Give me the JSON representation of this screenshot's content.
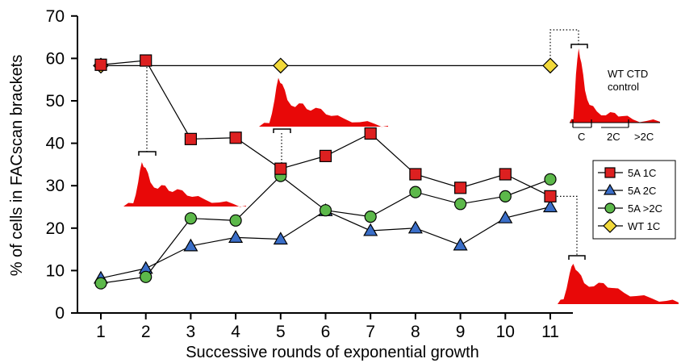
{
  "chart_data": {
    "type": "line",
    "xlabel": "Successive rounds of exponential growth",
    "ylabel": "% of cells in FACscan brackets",
    "x": [
      1,
      2,
      3,
      4,
      5,
      6,
      7,
      8,
      9,
      10,
      11
    ],
    "x_tick_labels": [
      "1",
      "2",
      "3",
      "4",
      "5",
      "6",
      "7",
      "8",
      "9",
      "10",
      "11"
    ],
    "y_tick_labels": [
      "0",
      "10",
      "20",
      "30",
      "40",
      "50",
      "60",
      "70"
    ],
    "ylim": [
      0,
      70
    ],
    "xlim": [
      1,
      11
    ],
    "grid": false,
    "legend_position": "right",
    "series": [
      {
        "name": "5A 1C",
        "marker": "square",
        "color": "#dd2020",
        "values": [
          58.5,
          59.5,
          41,
          41.3,
          34,
          37,
          42.3,
          32.7,
          29.5,
          32.7,
          27.5
        ]
      },
      {
        "name": "5A 2C",
        "marker": "triangle",
        "color": "#3a6ec8",
        "values": [
          8.2,
          10.5,
          15.8,
          17.8,
          17.4,
          24.1,
          19.4,
          20,
          16,
          22.4,
          25
        ]
      },
      {
        "name": "5A >2C",
        "marker": "circle",
        "color": "#5cb84a",
        "values": [
          7,
          8.5,
          22.3,
          21.8,
          32.3,
          24.2,
          22.7,
          28.5,
          25.7,
          27.5,
          31.5
        ]
      },
      {
        "name": "WT 1C",
        "marker": "diamond",
        "color": "#f2d93a",
        "values": [
          58.3,
          null,
          null,
          null,
          58.3,
          null,
          null,
          null,
          null,
          null,
          58.3
        ],
        "line_across": true
      }
    ],
    "insets": {
      "wt_title_line1": "WT CTD",
      "wt_title_line2": "control",
      "bracket_c": "C",
      "bracket_2c": "2C",
      "bracket_gt2c": ">2C",
      "fill_color": "#e80808"
    }
  }
}
